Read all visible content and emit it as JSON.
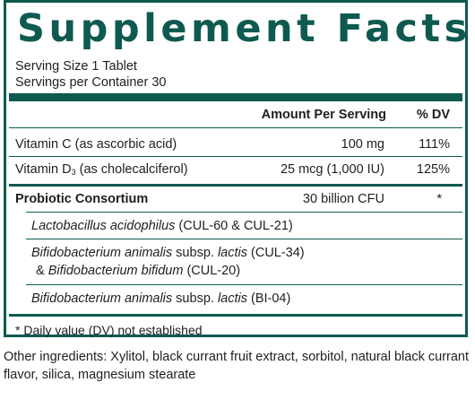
{
  "title": "Supplement Facts",
  "serving_size": "Serving Size 1 Tablet",
  "servings_per_container": "Servings per Container 30",
  "header": {
    "amount": "Amount Per Serving",
    "dv": "% DV"
  },
  "rows": [
    {
      "name": "Vitamin C (as ascorbic acid)",
      "amount": "100 mg",
      "dv": "111%"
    },
    {
      "name_prefix": "Vitamin D",
      "name_sub": "3",
      "name_suffix": " (as cholecalciferol)",
      "amount": "25 mcg (1,000 IU)",
      "dv": "125%"
    }
  ],
  "probiotic": {
    "name": "Probiotic Consortium",
    "amount": "30 billion CFU",
    "dv": "*",
    "strains": [
      {
        "italic": "Lactobacillus acidophilus",
        "plain": " (CUL-60 & CUL-21)"
      },
      {
        "italic": "Bifidobacterium animalis",
        "plain": " subsp. ",
        "italic2": "lactis",
        "plain2": " (CUL-34)"
      },
      {
        "plain": "& ",
        "italic": "Bifidobacterium bifidum",
        "plain2": " (CUL-20)"
      },
      {
        "italic": "Bifidobacterium animalis",
        "plain": " subsp. ",
        "italic2": "lactis",
        "plain2": " (BI-04)"
      }
    ]
  },
  "footnote": "* Daily value (DV) not established",
  "other_ingredients": "Other ingredients: Xylitol, black currant fruit extract, sorbitol, natural black currant flavor, silica, magnesium stearate",
  "colors": {
    "accent": "#0f5a50"
  }
}
